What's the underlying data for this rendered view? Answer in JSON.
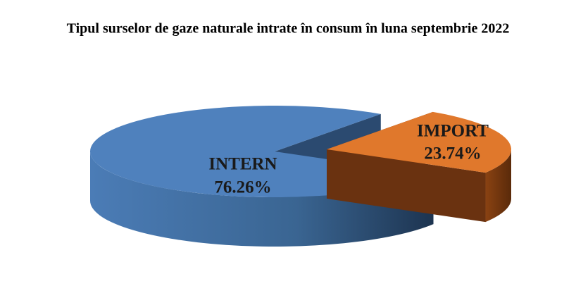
{
  "chart_data": {
    "type": "pie3d",
    "title": "Tipul surselor de gaze naturale intrate în consum în luna septembrie 2022",
    "categories": [
      "INTERN",
      "IMPORT"
    ],
    "values": [
      76.26,
      23.74
    ],
    "value_labels": [
      "76.26%",
      "23.74%"
    ],
    "colors": [
      "#4f81bd",
      "#e0782c"
    ]
  }
}
